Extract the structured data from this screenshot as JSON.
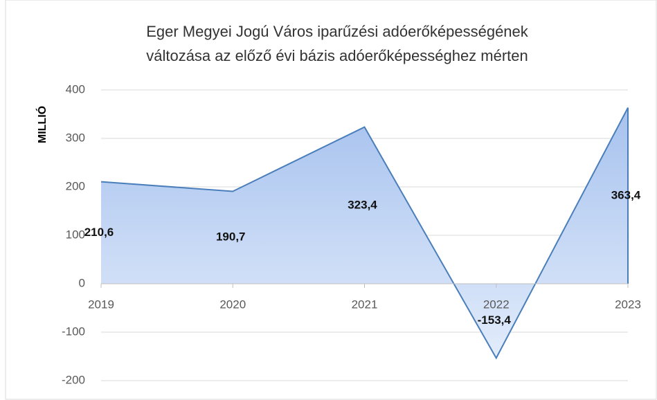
{
  "chart_data": {
    "type": "area",
    "title": [
      "Eger Megyei Jogú Város iparűzési adóerőképességének",
      "változása az előző évi bázis adóerőképességhez mérten"
    ],
    "ylabel": "MILLIÓ",
    "categories": [
      "2019",
      "2020",
      "2021",
      "2022",
      "2023"
    ],
    "values": [
      210.6,
      190.7,
      323.4,
      -153.4,
      363.4
    ],
    "value_labels": [
      "210,6",
      "190,7",
      "323,4",
      "-153,4",
      "363,4"
    ],
    "color": "#4a7ebb",
    "ylim": [
      -200,
      400
    ],
    "yticks": [
      -200,
      -100,
      0,
      100,
      200,
      300,
      400
    ],
    "grid": true
  }
}
